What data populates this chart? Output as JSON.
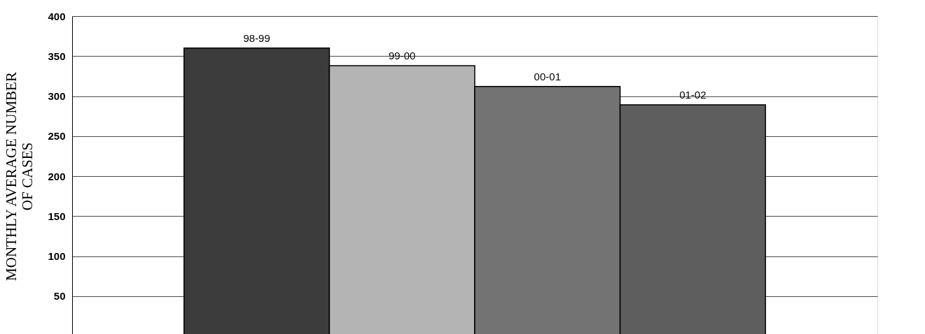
{
  "chart_data": {
    "type": "bar",
    "ylabel": "MONTHLY AVERAGE NUMBER OF CASES",
    "categories": [
      "98-99",
      "99-00",
      "00-01",
      "01-02"
    ],
    "values": [
      360,
      338,
      312,
      289
    ],
    "colors": [
      "#3c3c3c",
      "#b4b4b4",
      "#737373",
      "#5e5e5e"
    ],
    "ylim": [
      0,
      400
    ],
    "yticks": [
      50,
      100,
      150,
      200,
      250,
      300,
      350,
      400
    ],
    "grid": "y",
    "tick_labels": "y"
  }
}
